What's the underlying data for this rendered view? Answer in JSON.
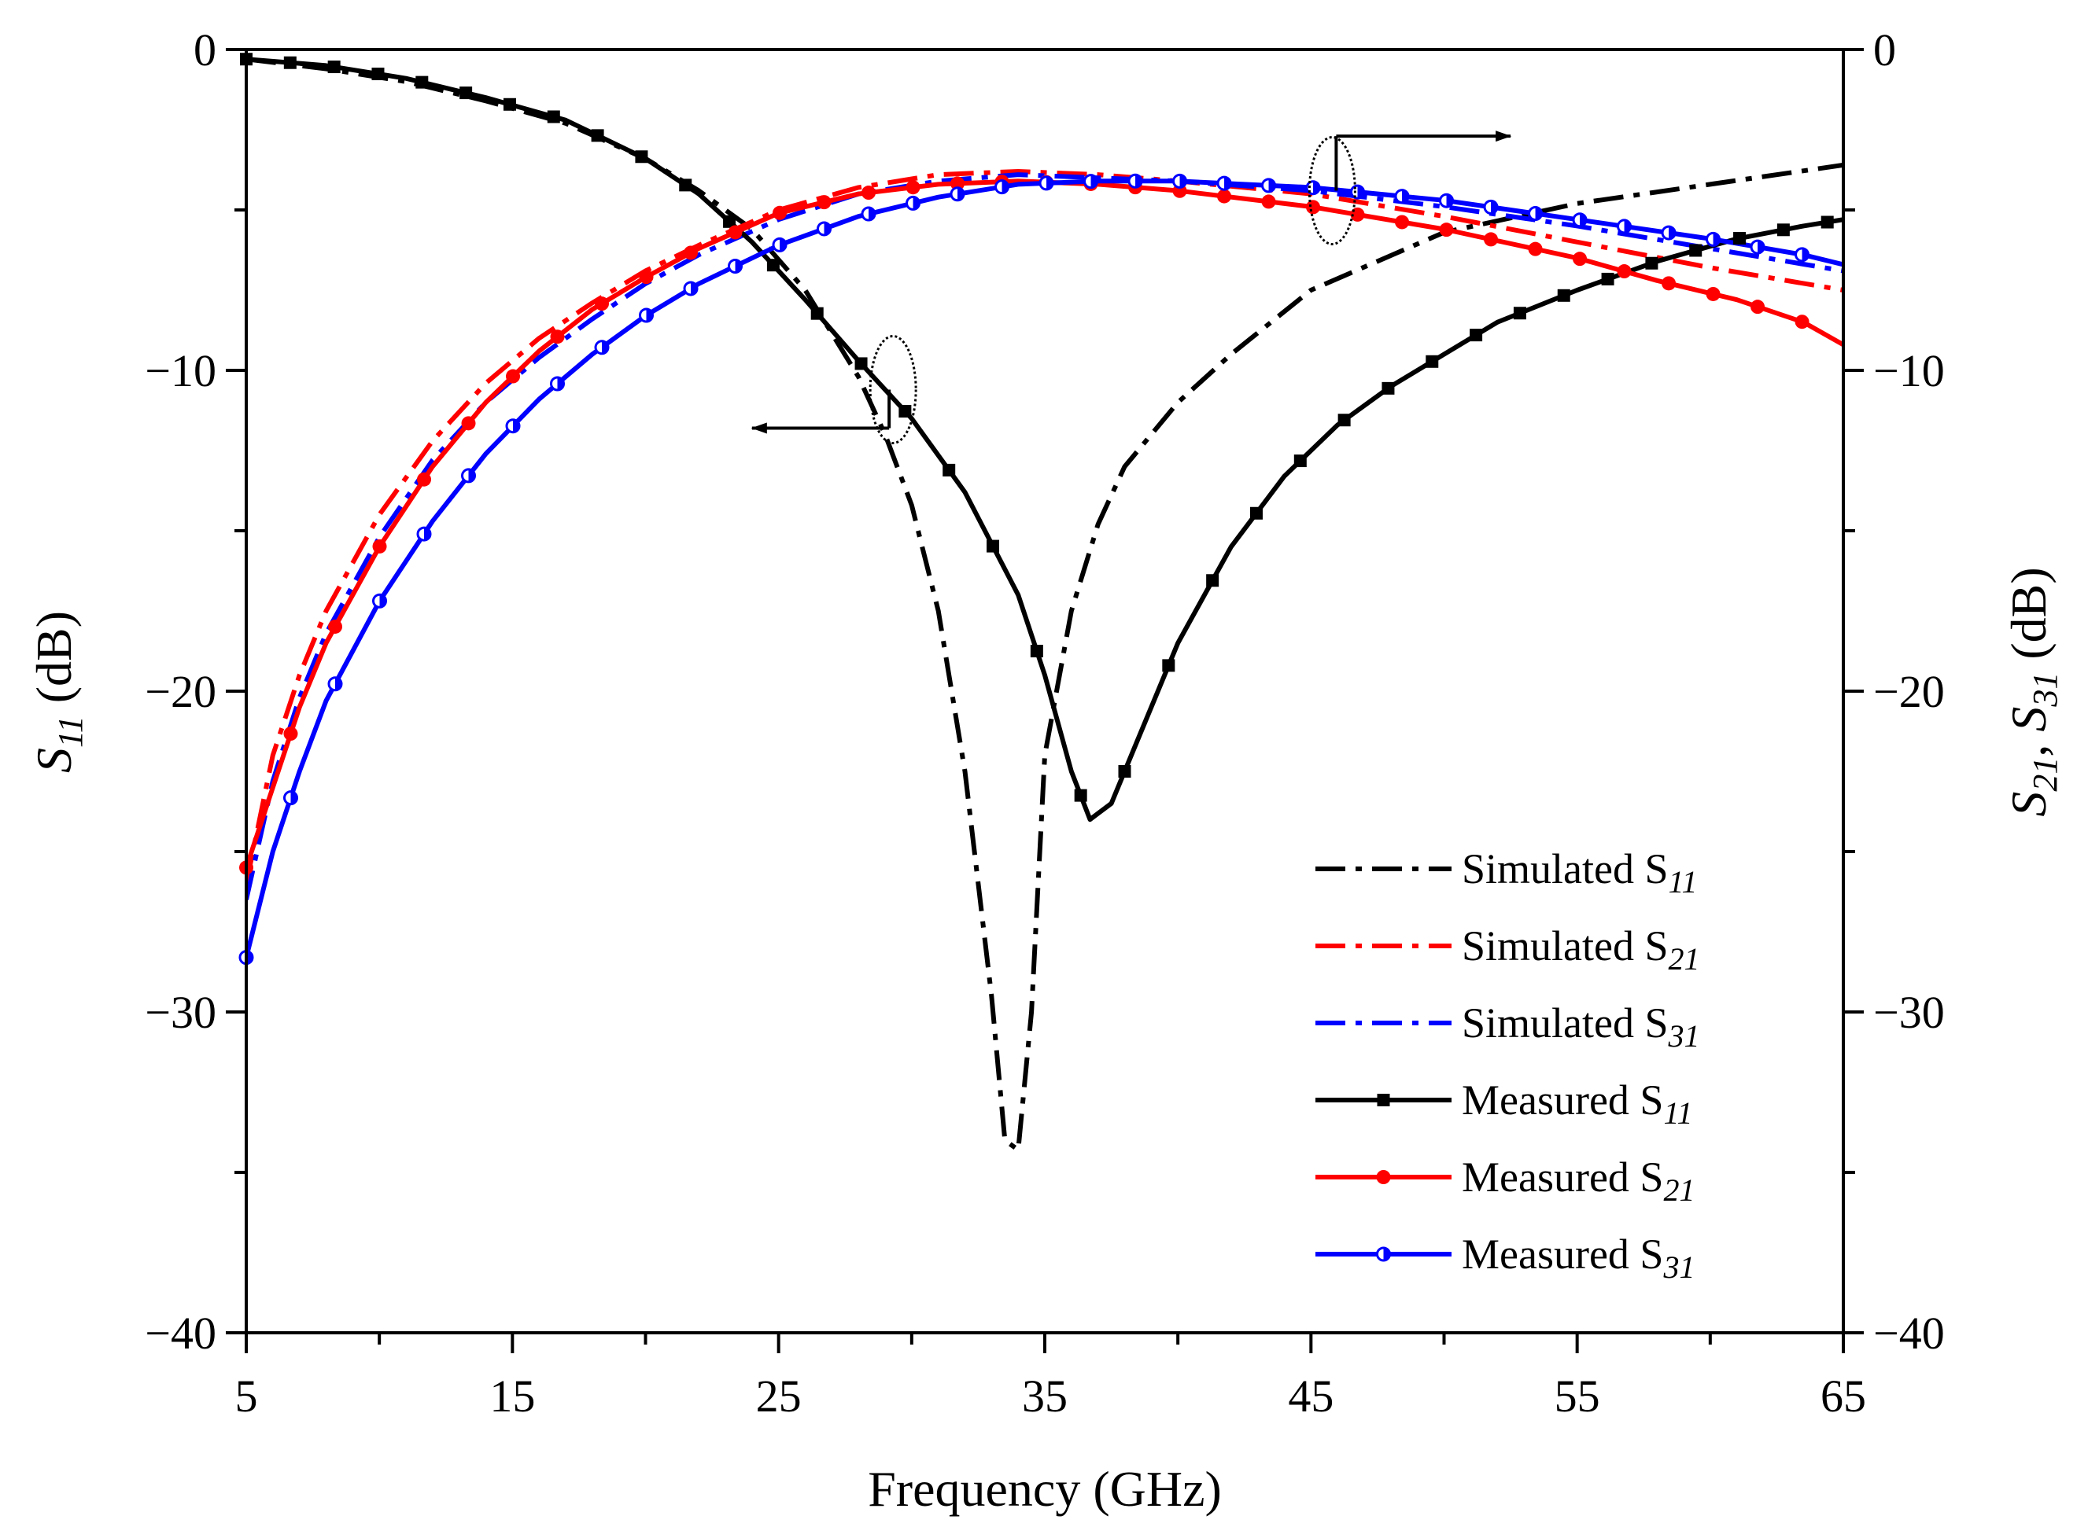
{
  "chart_data": {
    "type": "line",
    "xlabel": "Frequency (GHz)",
    "ylabel_left": {
      "main": "S",
      "sub": "11",
      "unit": " (dB)"
    },
    "ylabel_right": {
      "main1": "S",
      "sub1": "21",
      "sep": ", ",
      "main2": "S",
      "sub2": "31",
      "unit": " (dB)"
    },
    "xlim": [
      5,
      65
    ],
    "ylim": [
      -40,
      0
    ],
    "x_ticks": [
      5,
      15,
      25,
      35,
      45,
      55,
      65
    ],
    "x_tick_labels": [
      "5",
      "15",
      "25",
      "35",
      "45",
      "55",
      "65"
    ],
    "y_ticks": [
      0,
      -10,
      -20,
      -30,
      -40
    ],
    "y_tick_labels": [
      "0",
      "−10",
      "−20",
      "−30",
      "−40"
    ],
    "annotations": [
      {
        "type": "ellipse-arrow",
        "meaning": "S11 curves read on left axis",
        "center": [
          29.3,
          -10.6
        ],
        "arrow_to": [
          24.0,
          -11.8
        ]
      },
      {
        "type": "ellipse-arrow",
        "meaning": "S21/S31 curves read on right axis",
        "center": [
          45.8,
          -4.4
        ],
        "arrow_to": [
          52.5,
          -2.7
        ]
      }
    ],
    "series": [
      {
        "name": "Simulated S11",
        "legend_main": "Simulated S",
        "legend_sub": "11",
        "color": "#000000",
        "style": "dashdot",
        "marker": "none",
        "axis": "left",
        "x": [
          5,
          8,
          11,
          14,
          17,
          20,
          22,
          24,
          26,
          28,
          29,
          30,
          31,
          32,
          33,
          33.5,
          34,
          34.5,
          35,
          36,
          37,
          38,
          40,
          42,
          45,
          50,
          55,
          60,
          65
        ],
        "y": [
          -0.3,
          -0.6,
          -1.0,
          -1.6,
          -2.3,
          -3.4,
          -4.4,
          -5.6,
          -7.5,
          -10.2,
          -12.0,
          -14.2,
          -17.5,
          -22.5,
          -29.5,
          -34.0,
          -34.3,
          -30.0,
          -22.0,
          -17.5,
          -14.8,
          -13.0,
          -11.0,
          -9.5,
          -7.5,
          -5.7,
          -4.8,
          -4.2,
          -3.6
        ]
      },
      {
        "name": "Simulated S21",
        "legend_main": "Simulated S",
        "legend_sub": "21",
        "color": "#ff0000",
        "style": "dashdot",
        "marker": "none",
        "axis": "right",
        "x": [
          5,
          6,
          7,
          8,
          10,
          12,
          14,
          16,
          18,
          20,
          22,
          25,
          28,
          31,
          34,
          37,
          40,
          45,
          50,
          55,
          60,
          65
        ],
        "y": [
          -26.0,
          -22.0,
          -19.5,
          -17.5,
          -14.5,
          -12.2,
          -10.4,
          -9.0,
          -7.9,
          -6.9,
          -6.1,
          -5.0,
          -4.3,
          -3.9,
          -3.8,
          -3.9,
          -4.1,
          -4.5,
          -5.2,
          -6.0,
          -6.8,
          -7.5
        ]
      },
      {
        "name": "Simulated S31",
        "legend_main": "Simulated S",
        "legend_sub": "31",
        "color": "#0000ff",
        "style": "dashdot",
        "marker": "none",
        "axis": "right",
        "x": [
          5,
          6,
          7,
          8,
          10,
          12,
          14,
          16,
          18,
          20,
          22,
          25,
          28,
          31,
          34,
          37,
          40,
          45,
          50,
          55,
          60,
          65
        ],
        "y": [
          -26.5,
          -22.8,
          -20.2,
          -18.2,
          -15.2,
          -12.8,
          -11.0,
          -9.6,
          -8.4,
          -7.3,
          -6.4,
          -5.3,
          -4.5,
          -4.1,
          -3.9,
          -4.0,
          -4.1,
          -4.4,
          -4.9,
          -5.5,
          -6.2,
          -6.9
        ]
      },
      {
        "name": "Measured S11",
        "legend_main": "Measured S",
        "legend_sub": "11",
        "color": "#000000",
        "style": "solid",
        "marker": "square",
        "axis": "left",
        "x": [
          5,
          8,
          11,
          14,
          17,
          20,
          22,
          24,
          26,
          28,
          30,
          32,
          34,
          35,
          36,
          36.7,
          37.5,
          38.5,
          40,
          42,
          44,
          46,
          48,
          50,
          52,
          55,
          58,
          61,
          63.5,
          65
        ],
        "y": [
          -0.3,
          -0.5,
          -0.9,
          -1.5,
          -2.2,
          -3.4,
          -4.5,
          -6.0,
          -7.8,
          -9.7,
          -11.5,
          -13.8,
          -17.0,
          -19.5,
          -22.5,
          -24.0,
          -23.5,
          -21.5,
          -18.5,
          -15.5,
          -13.3,
          -11.7,
          -10.5,
          -9.5,
          -8.5,
          -7.5,
          -6.6,
          -5.9,
          -5.5,
          -5.3
        ]
      },
      {
        "name": "Measured S21",
        "legend_main": "Measured S",
        "legend_sub": "21",
        "color": "#ff0000",
        "style": "solid",
        "marker": "circle",
        "axis": "right",
        "x": [
          5,
          6,
          7,
          8,
          10,
          12,
          14,
          16,
          18,
          20,
          22,
          25,
          28,
          31,
          34,
          37,
          40,
          45,
          50,
          55,
          58,
          61,
          63.5,
          65
        ],
        "y": [
          -25.5,
          -23.0,
          -20.5,
          -18.5,
          -15.5,
          -13.0,
          -11.0,
          -9.4,
          -8.1,
          -7.1,
          -6.2,
          -5.1,
          -4.5,
          -4.2,
          -4.1,
          -4.2,
          -4.4,
          -4.9,
          -5.6,
          -6.5,
          -7.2,
          -7.8,
          -8.5,
          -9.2
        ]
      },
      {
        "name": "Measured S31",
        "legend_main": "Measured S",
        "legend_sub": "31",
        "color": "#0000ff",
        "style": "solid",
        "marker": "half-circle",
        "axis": "right",
        "x": [
          5,
          6,
          7,
          8,
          10,
          12,
          14,
          16,
          18,
          20,
          22,
          25,
          28,
          31,
          34,
          37,
          40,
          45,
          50,
          55,
          60,
          63.5,
          65
        ],
        "y": [
          -28.3,
          -25.0,
          -22.5,
          -20.3,
          -17.2,
          -14.7,
          -12.6,
          -10.9,
          -9.5,
          -8.3,
          -7.3,
          -6.1,
          -5.2,
          -4.6,
          -4.2,
          -4.1,
          -4.1,
          -4.3,
          -4.7,
          -5.3,
          -5.9,
          -6.4,
          -6.7
        ]
      }
    ]
  }
}
